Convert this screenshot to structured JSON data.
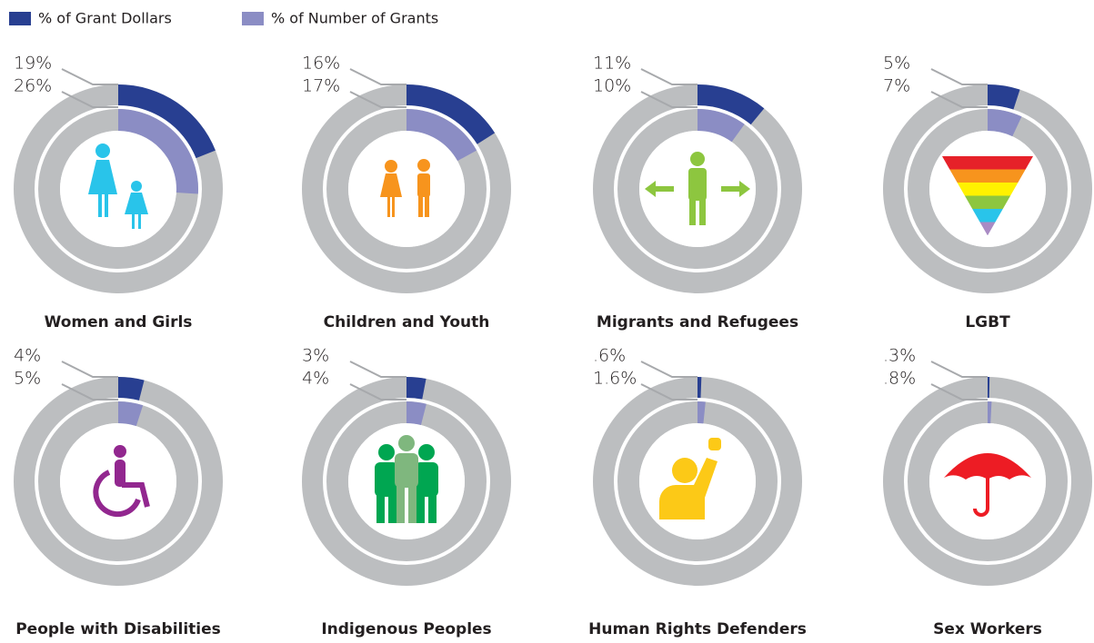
{
  "legend": [
    {
      "name": "% of Grant Dollars",
      "color": "#283f91"
    },
    {
      "name": "% of Number of Grants",
      "color": "#8b8dc4"
    }
  ],
  "chart_data": [
    {
      "type": "donut",
      "title": "Women and Girls",
      "values": [
        19,
        26
      ],
      "value_labels": [
        "19%",
        "26%"
      ]
    },
    {
      "type": "donut",
      "title": "Children and Youth",
      "values": [
        16,
        17
      ],
      "value_labels": [
        "16%",
        "17%"
      ]
    },
    {
      "type": "donut",
      "title": "Migrants and Refugees",
      "values": [
        11,
        10
      ],
      "value_labels": [
        "11%",
        "10%"
      ]
    },
    {
      "type": "donut",
      "title": "LGBT",
      "values": [
        5,
        7
      ],
      "value_labels": [
        "5%",
        "7%"
      ]
    },
    {
      "type": "donut",
      "title": "People with Disabilities",
      "values": [
        4,
        5
      ],
      "value_labels": [
        "4%",
        "5%"
      ]
    },
    {
      "type": "donut",
      "title": "Indigenous Peoples",
      "values": [
        3,
        4
      ],
      "value_labels": [
        "3%",
        "4%"
      ]
    },
    {
      "type": "donut",
      "title": "Human Rights Defenders",
      "values": [
        0.6,
        1.6
      ],
      "value_labels": [
        ".6%",
        "1.6%"
      ]
    },
    {
      "type": "donut",
      "title": "Sex Workers",
      "values": [
        0.3,
        0.8
      ],
      "value_labels": [
        ".3%",
        ".8%"
      ]
    }
  ]
}
